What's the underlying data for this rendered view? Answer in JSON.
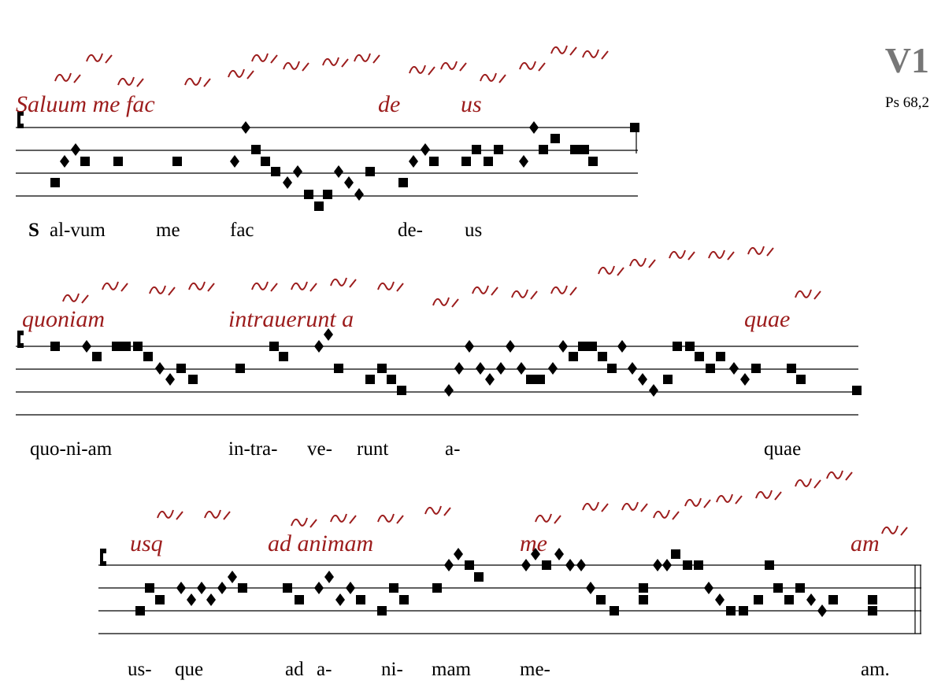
{
  "header": {
    "mode": "V1",
    "reference": "Ps 68,2"
  },
  "systems": [
    {
      "manuscript": [
        "Saluum me fac",
        "de",
        "us"
      ],
      "initial": "S",
      "lyrics": [
        "al-vum",
        "me",
        "fac",
        "de-",
        "us"
      ]
    },
    {
      "manuscript": [
        "quoniam",
        "intrauerunt a",
        "quae"
      ],
      "lyrics": [
        "quo-ni-am",
        "in-tra-",
        "ve-",
        "runt",
        "a-",
        "quae"
      ]
    },
    {
      "manuscript": [
        "usq",
        "ad animam",
        "me",
        "am"
      ],
      "lyrics": [
        "us-",
        "que",
        "ad",
        "a-",
        "ni-",
        "mam",
        "me-",
        "am."
      ]
    }
  ]
}
